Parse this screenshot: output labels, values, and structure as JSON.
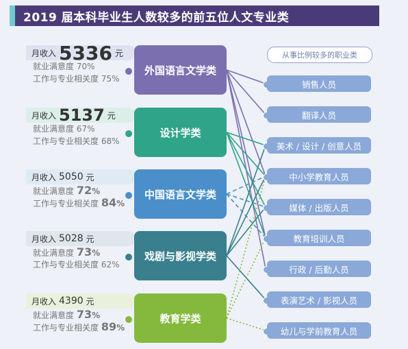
{
  "title": "2019 届本科毕业生人数较多的前五位人文专业类",
  "occupation_header": "从事比例较多的职业类",
  "income_label": "月收入",
  "income_unit": "元",
  "satisfaction_label": "就业满意度",
  "relevance_label": "工作与专业相关度",
  "colors": {
    "title_bg": "#4a3b78",
    "title_accent": "#6fcbd1",
    "occupation": "#8aa8d8",
    "majors": [
      "#7c6fb0",
      "#2fa489",
      "#4a8fc9",
      "#3a7f8e",
      "#84b93e"
    ],
    "panels": [
      "#dfe3f1",
      "#dceee8",
      "#e0eaf4",
      "#e0e7ec",
      "#e9f1dd"
    ]
  },
  "chart_data": {
    "type": "table",
    "title": "2019 届本科毕业生人数较多的前五位人文专业类",
    "majors": [
      {
        "name": "外国语言文学类",
        "income": "5336",
        "satisfaction": "70%",
        "relevance": "75%"
      },
      {
        "name": "设计学类",
        "income": "5137",
        "satisfaction": "67%",
        "relevance": "68%"
      },
      {
        "name": "中国语言文学类",
        "income": "5050",
        "satisfaction": "72%",
        "relevance": "84%"
      },
      {
        "name": "戏剧与影视学类",
        "income": "5028",
        "satisfaction": "73%",
        "relevance": "62%"
      },
      {
        "name": "教育学类",
        "income": "4390",
        "satisfaction": "73%",
        "relevance": "89%"
      }
    ],
    "occupations": [
      "销售人员",
      "翻译人员",
      "美术 / 设计 / 创意人员",
      "中小学教育人员",
      "媒体 / 出版人员",
      "教育培训人员",
      "行政 / 后勤人员",
      "表演艺术 / 影视人员",
      "幼儿与学前教育人员"
    ],
    "links": [
      {
        "major": 0,
        "occupation": 0,
        "style": "solid"
      },
      {
        "major": 0,
        "occupation": 1,
        "style": "solid"
      },
      {
        "major": 0,
        "occupation": 3,
        "style": "solid"
      },
      {
        "major": 0,
        "occupation": 5,
        "style": "solid"
      },
      {
        "major": 0,
        "occupation": 6,
        "style": "solid"
      },
      {
        "major": 1,
        "occupation": 2,
        "style": "solid"
      },
      {
        "major": 1,
        "occupation": 3,
        "style": "solid"
      },
      {
        "major": 1,
        "occupation": 4,
        "style": "solid"
      },
      {
        "major": 1,
        "occupation": 5,
        "style": "solid"
      },
      {
        "major": 2,
        "occupation": 3,
        "style": "dashed"
      },
      {
        "major": 2,
        "occupation": 4,
        "style": "dashed"
      },
      {
        "major": 2,
        "occupation": 5,
        "style": "dashed"
      },
      {
        "major": 3,
        "occupation": 2,
        "style": "solid"
      },
      {
        "major": 3,
        "occupation": 3,
        "style": "solid"
      },
      {
        "major": 3,
        "occupation": 4,
        "style": "solid"
      },
      {
        "major": 3,
        "occupation": 7,
        "style": "solid"
      },
      {
        "major": 4,
        "occupation": 3,
        "style": "dotted"
      },
      {
        "major": 4,
        "occupation": 5,
        "style": "dotted"
      },
      {
        "major": 4,
        "occupation": 8,
        "style": "dotted"
      }
    ]
  }
}
